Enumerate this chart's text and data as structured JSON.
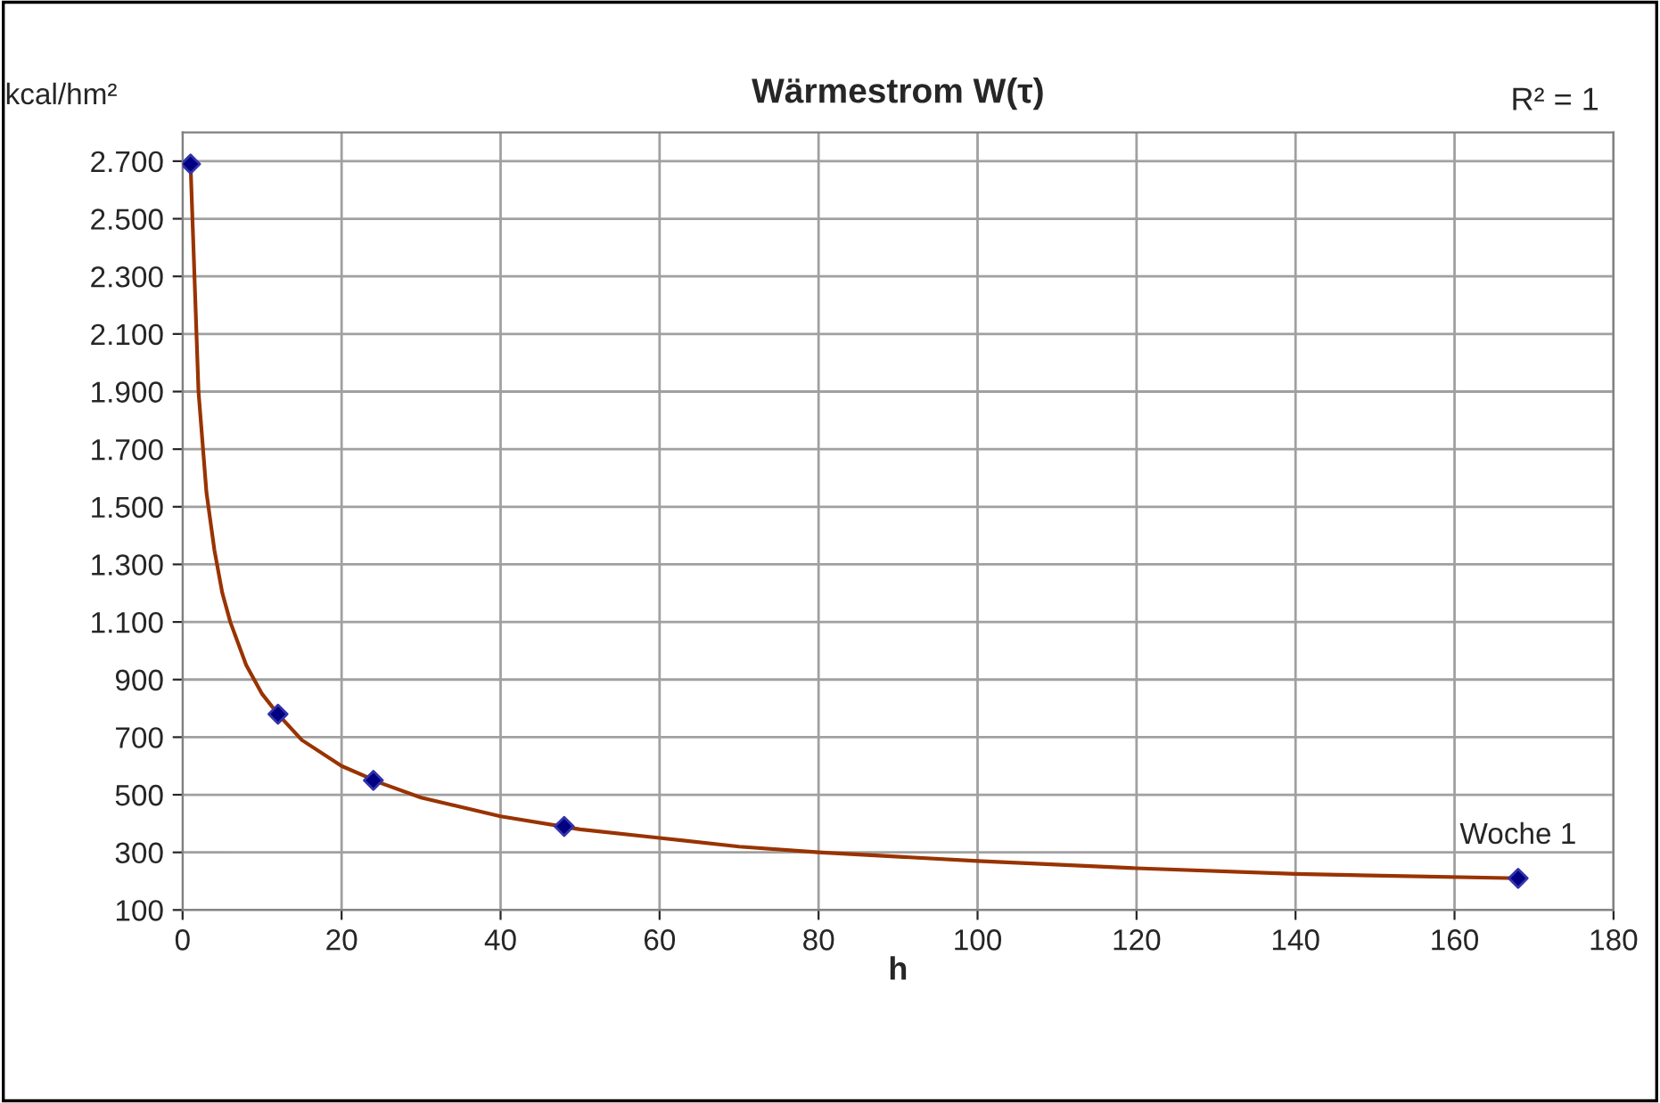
{
  "chart_data": {
    "type": "scatter",
    "title": "Wärmestrom W(τ)",
    "xlabel": "h",
    "ylabel": "kcal/hm²",
    "xlim": [
      0,
      180
    ],
    "xticks": [
      0,
      20,
      40,
      60,
      80,
      100,
      120,
      140,
      160,
      180
    ],
    "ylim": [
      100,
      2800
    ],
    "yticks": [
      {
        "value": 100,
        "label": "100"
      },
      {
        "value": 300,
        "label": "300"
      },
      {
        "value": 500,
        "label": "500"
      },
      {
        "value": 700,
        "label": "700"
      },
      {
        "value": 900,
        "label": "900"
      },
      {
        "value": 1100,
        "label": "1.100"
      },
      {
        "value": 1300,
        "label": "1.300"
      },
      {
        "value": 1500,
        "label": "1.500"
      },
      {
        "value": 1700,
        "label": "1.700"
      },
      {
        "value": 1900,
        "label": "1.900"
      },
      {
        "value": 2100,
        "label": "2.100"
      },
      {
        "value": 2300,
        "label": "2.300"
      },
      {
        "value": 2500,
        "label": "2.500"
      },
      {
        "value": 2700,
        "label": "2.700"
      }
    ],
    "grid": true,
    "legend": false,
    "series": [
      {
        "type": "line",
        "color": "#993300",
        "marker": "none",
        "x": [
          1,
          2,
          3,
          4,
          5,
          6,
          8,
          10,
          12,
          15,
          20,
          25,
          30,
          40,
          50,
          60,
          70,
          80,
          100,
          120,
          140,
          168
        ],
        "values": [
          2690,
          1900,
          1550,
          1350,
          1200,
          1100,
          950,
          850,
          780,
          690,
          600,
          540,
          490,
          425,
          380,
          350,
          320,
          300,
          270,
          245,
          225,
          210
        ]
      },
      {
        "color": "#000080",
        "marker": "diamond",
        "x": [
          1,
          12,
          24,
          48,
          168
        ],
        "values": [
          2690,
          780,
          550,
          390,
          210
        ]
      }
    ],
    "annotations": [
      "R² = 1",
      {
        "text": "Woche 1",
        "x": 168,
        "y": 210
      }
    ]
  }
}
